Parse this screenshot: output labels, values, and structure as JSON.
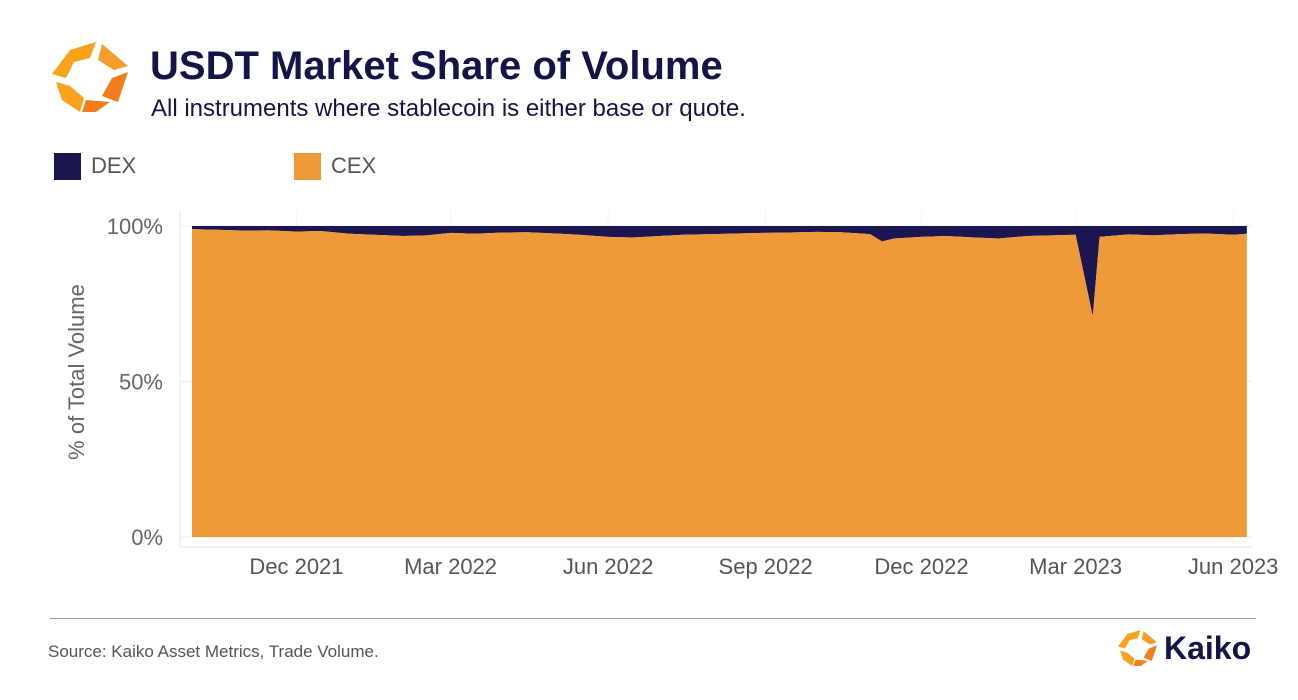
{
  "header": {
    "title": "USDT Market Share of Volume",
    "subtitle": "All instruments where stablecoin is either base or quote."
  },
  "legend": [
    {
      "label": "DEX",
      "color": "#1b1650"
    },
    {
      "label": "CEX",
      "color": "#ef9a38"
    }
  ],
  "footer": {
    "source": "Source: Kaiko Asset Metrics, Trade Volume.",
    "brand": "Kaiko"
  },
  "colors": {
    "dex": "#1b1650",
    "cex": "#ef9a38",
    "accent_orange": "#f7a21b",
    "title_navy": "#141449"
  },
  "chart_data": {
    "type": "area",
    "stacked": true,
    "title": "USDT Market Share of Volume",
    "subtitle": "All instruments where stablecoin is either base or quote.",
    "xlabel": "",
    "ylabel": "% of Total Volume",
    "ylim": [
      0,
      100
    ],
    "xlim": [
      "2021-09-24",
      "2023-06-12"
    ],
    "yticks": [
      0,
      50,
      100
    ],
    "ytick_labels": [
      "0%",
      "50%",
      "100%"
    ],
    "xticks": [
      "2021-12-01",
      "2022-03-01",
      "2022-06-01",
      "2022-09-01",
      "2022-12-01",
      "2023-03-01",
      "2023-06-01"
    ],
    "xtick_labels": [
      "Dec 2021",
      "Mar 2022",
      "Jun 2022",
      "Sep 2022",
      "Dec 2022",
      "Mar 2023",
      "Jun 2023"
    ],
    "grid": true,
    "legend_position": "top-left",
    "dates": [
      "2021-10-01",
      "2021-10-15",
      "2021-11-01",
      "2021-11-15",
      "2021-12-01",
      "2021-12-15",
      "2022-01-01",
      "2022-01-15",
      "2022-02-01",
      "2022-02-15",
      "2022-03-01",
      "2022-03-15",
      "2022-04-01",
      "2022-04-15",
      "2022-05-01",
      "2022-05-15",
      "2022-06-01",
      "2022-06-15",
      "2022-07-01",
      "2022-07-15",
      "2022-08-01",
      "2022-08-15",
      "2022-09-01",
      "2022-09-15",
      "2022-10-01",
      "2022-10-15",
      "2022-11-01",
      "2022-11-08",
      "2022-11-15",
      "2022-12-01",
      "2022-12-15",
      "2023-01-01",
      "2023-01-15",
      "2023-02-01",
      "2023-02-15",
      "2023-03-01",
      "2023-03-11",
      "2023-03-15",
      "2023-04-01",
      "2023-04-15",
      "2023-05-01",
      "2023-05-15",
      "2023-06-01",
      "2023-06-09"
    ],
    "series": [
      {
        "name": "CEX",
        "color": "#ef9a38",
        "values": [
          99.0,
          98.8,
          98.5,
          98.6,
          98.2,
          98.4,
          97.5,
          97.2,
          96.8,
          97.0,
          97.8,
          97.5,
          97.9,
          98.0,
          97.6,
          97.2,
          96.5,
          96.3,
          96.8,
          97.2,
          97.4,
          97.6,
          97.8,
          97.9,
          98.1,
          98.0,
          97.4,
          95.0,
          96.0,
          96.5,
          96.8,
          96.3,
          96.0,
          96.8,
          97.0,
          97.2,
          71.0,
          96.5,
          97.3,
          97.0,
          97.4,
          97.6,
          97.2,
          97.5
        ]
      },
      {
        "name": "DEX",
        "color": "#1b1650",
        "values": [
          1.0,
          1.2,
          1.5,
          1.4,
          1.8,
          1.6,
          2.5,
          2.8,
          3.2,
          3.0,
          2.2,
          2.5,
          2.1,
          2.0,
          2.4,
          2.8,
          3.5,
          3.7,
          3.2,
          2.8,
          2.6,
          2.4,
          2.2,
          2.1,
          1.9,
          2.0,
          2.6,
          5.0,
          4.0,
          3.5,
          3.2,
          3.7,
          4.0,
          3.2,
          3.0,
          2.8,
          29.0,
          3.5,
          2.7,
          3.0,
          2.6,
          2.4,
          2.8,
          2.5
        ]
      }
    ]
  }
}
